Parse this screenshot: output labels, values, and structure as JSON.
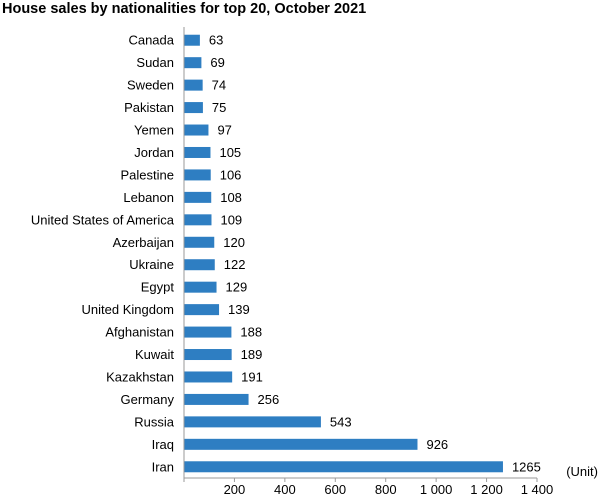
{
  "chart_data": {
    "type": "bar",
    "orientation": "horizontal",
    "title": "House sales by nationalities for top 20, October 2021",
    "categories": [
      "Canada",
      "Sudan",
      "Sweden",
      "Pakistan",
      "Yemen",
      "Jordan",
      "Palestine",
      "Lebanon",
      "United States of America",
      "Azerbaijan",
      "Ukraine",
      "Egypt",
      "United Kingdom",
      "Afghanistan",
      "Kuwait",
      "Kazakhstan",
      "Germany",
      "Russia",
      "Iraq",
      "Iran"
    ],
    "values": [
      63,
      69,
      74,
      75,
      97,
      105,
      106,
      108,
      109,
      120,
      122,
      129,
      139,
      188,
      189,
      191,
      256,
      543,
      926,
      1265
    ],
    "value_labels": [
      "63",
      "69",
      "74",
      "75",
      "97",
      "105",
      "106",
      "108",
      "109",
      "120",
      "122",
      "129",
      "139",
      "188",
      "189",
      "191",
      "256",
      "543",
      "926",
      "1265"
    ],
    "unit_label": "(Unit)",
    "xlim": [
      0,
      1400
    ],
    "xticks": [
      200,
      400,
      600,
      800,
      1000,
      1200,
      1400
    ],
    "xtick_labels": [
      "200",
      "400",
      "600",
      "800",
      "1 000",
      "1 200",
      "1 400"
    ],
    "grid": false,
    "bar_color": "#2e7ec2"
  }
}
